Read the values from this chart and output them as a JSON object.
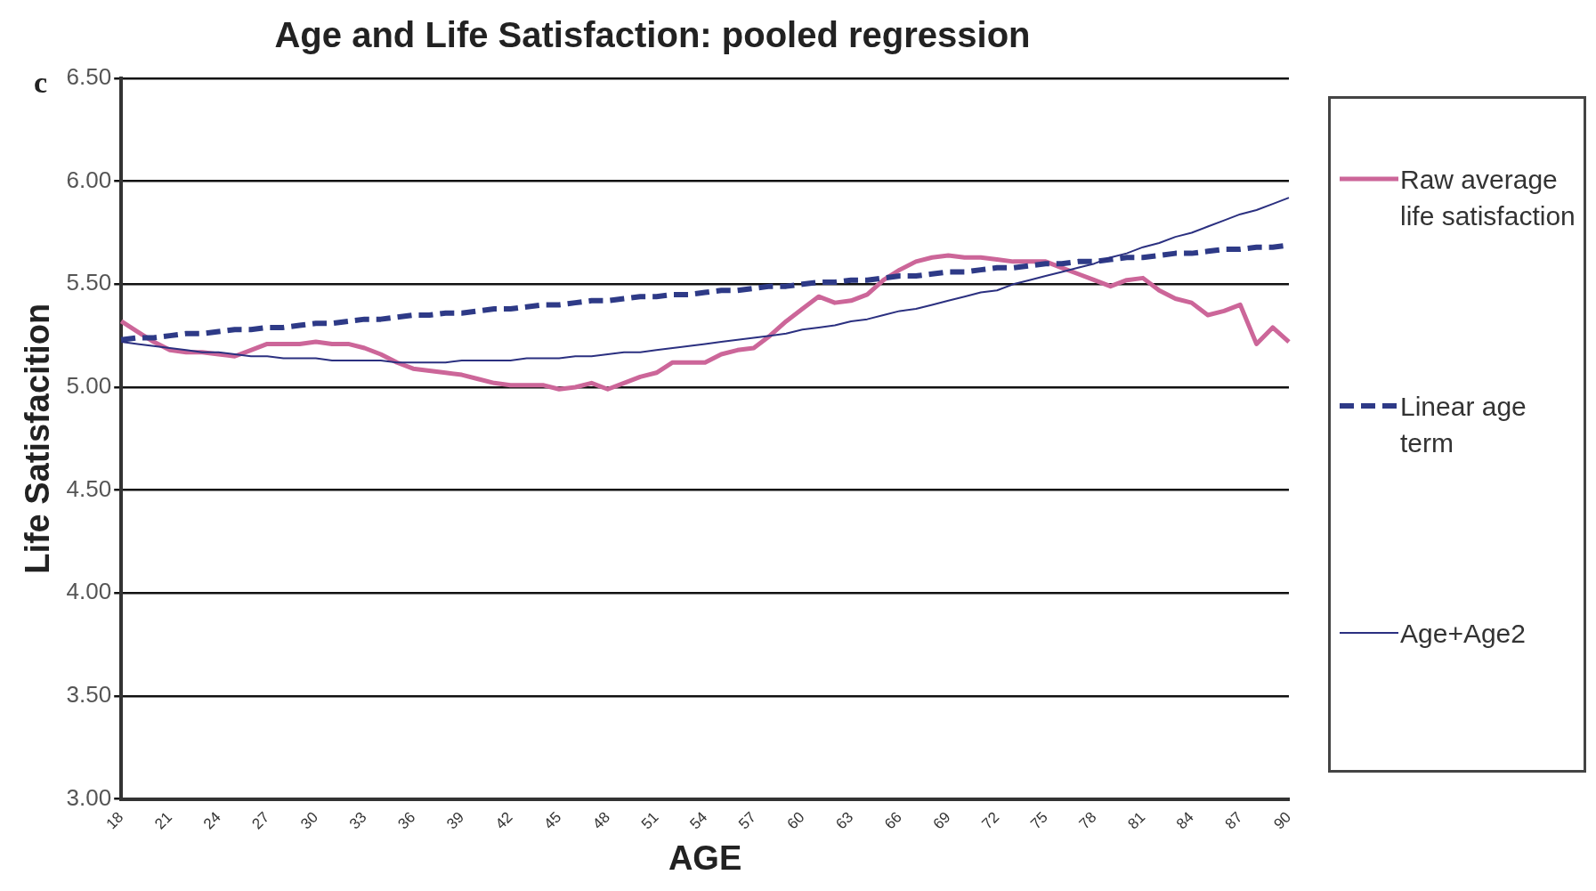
{
  "chart_data": {
    "type": "line",
    "title": "Age and Life Satisfaction: pooled regression",
    "xlabel": "AGE",
    "ylabel": "Life Satisfacition",
    "annotations": [
      "c"
    ],
    "categories": [
      "18",
      null,
      null,
      "21",
      null,
      null,
      "24",
      null,
      null,
      "27",
      null,
      null,
      "30",
      null,
      null,
      "33",
      null,
      null,
      "36",
      null,
      null,
      "39",
      null,
      null,
      "42",
      null,
      null,
      "45",
      null,
      null,
      "48",
      null,
      null,
      "51",
      null,
      null,
      "54",
      null,
      null,
      "57",
      null,
      null,
      "60",
      null,
      null,
      "63",
      null,
      null,
      "66",
      null,
      null,
      "69",
      null,
      null,
      "72",
      null,
      null,
      "75",
      null,
      null,
      "78",
      null,
      null,
      "81",
      null,
      null,
      "84",
      null,
      null,
      "87",
      null,
      null,
      "90"
    ],
    "ylim": [
      3,
      6.5
    ],
    "yticks": [
      {
        "value": 3,
        "label": "3.00"
      },
      {
        "value": 3.5,
        "label": "3.50"
      },
      {
        "value": 4,
        "label": "4.00"
      },
      {
        "value": 4.5,
        "label": "4.50"
      },
      {
        "value": 5,
        "label": "5.00"
      },
      {
        "value": 5.5,
        "label": "5.50"
      },
      {
        "value": 6,
        "label": "6.00"
      },
      {
        "value": 6.5,
        "label": "6.50"
      }
    ],
    "grid": "y",
    "legend": "right",
    "marker": "none",
    "series": [
      {
        "name": "Raw average life satisfaction",
        "color": "#cc6699",
        "line_style": "solid",
        "values": [
          5.32,
          5.27,
          5.22,
          5.18,
          5.17,
          5.17,
          5.16,
          5.15,
          5.18,
          5.21,
          5.21,
          5.21,
          5.22,
          5.21,
          5.21,
          5.19,
          5.16,
          5.12,
          5.09,
          5.08,
          5.07,
          5.06,
          5.04,
          5.02,
          5.01,
          5.01,
          5.01,
          4.99,
          5.0,
          5.02,
          4.99,
          5.02,
          5.05,
          5.07,
          5.12,
          5.12,
          5.12,
          5.16,
          5.18,
          5.19,
          5.25,
          5.32,
          5.38,
          5.44,
          5.41,
          5.42,
          5.45,
          5.52,
          5.57,
          5.61,
          5.63,
          5.64,
          5.63,
          5.63,
          5.62,
          5.61,
          5.61,
          5.61,
          5.58,
          5.55,
          5.52,
          5.49,
          5.52,
          5.53,
          5.47,
          5.43,
          5.41,
          5.35,
          5.37,
          5.4,
          5.21,
          5.29,
          5.22
        ]
      },
      {
        "name": "Linear age term",
        "color": "#2e3a87",
        "line_style": "dashed",
        "values": [
          5.23,
          5.24,
          5.24,
          5.25,
          5.26,
          5.26,
          5.27,
          5.28,
          5.28,
          5.29,
          5.29,
          5.3,
          5.31,
          5.31,
          5.32,
          5.33,
          5.33,
          5.34,
          5.35,
          5.35,
          5.36,
          5.36,
          5.37,
          5.38,
          5.38,
          5.39,
          5.4,
          5.4,
          5.41,
          5.42,
          5.42,
          5.43,
          5.44,
          5.44,
          5.45,
          5.45,
          5.46,
          5.47,
          5.47,
          5.48,
          5.49,
          5.49,
          5.5,
          5.51,
          5.51,
          5.52,
          5.52,
          5.53,
          5.54,
          5.54,
          5.55,
          5.56,
          5.56,
          5.57,
          5.58,
          5.58,
          5.59,
          5.6,
          5.6,
          5.61,
          5.61,
          5.62,
          5.63,
          5.63,
          5.64,
          5.65,
          5.65,
          5.66,
          5.67,
          5.67,
          5.68,
          5.68,
          5.69
        ]
      },
      {
        "name": "Age+Age2",
        "color": "#2b3080",
        "line_style": "solid",
        "values": [
          5.22,
          5.21,
          5.2,
          5.19,
          5.18,
          5.17,
          5.17,
          5.16,
          5.15,
          5.15,
          5.14,
          5.14,
          5.14,
          5.13,
          5.13,
          5.13,
          5.13,
          5.12,
          5.12,
          5.12,
          5.12,
          5.13,
          5.13,
          5.13,
          5.13,
          5.14,
          5.14,
          5.14,
          5.15,
          5.15,
          5.16,
          5.17,
          5.17,
          5.18,
          5.19,
          5.2,
          5.21,
          5.22,
          5.23,
          5.24,
          5.25,
          5.26,
          5.28,
          5.29,
          5.3,
          5.32,
          5.33,
          5.35,
          5.37,
          5.38,
          5.4,
          5.42,
          5.44,
          5.46,
          5.47,
          5.5,
          5.52,
          5.54,
          5.56,
          5.58,
          5.6,
          5.63,
          5.65,
          5.68,
          5.7,
          5.73,
          5.75,
          5.78,
          5.81,
          5.84,
          5.86,
          5.89,
          5.92
        ]
      }
    ]
  }
}
